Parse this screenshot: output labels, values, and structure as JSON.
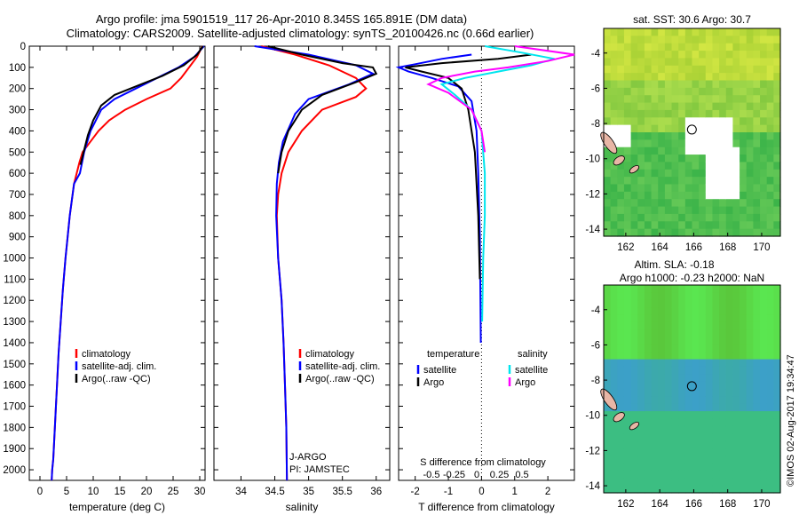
{
  "title_line1": "Argo profile: jma 5901519_117 26-Apr-2010 8.345S 165.891E (DM data)",
  "title_line2": "Climatology: CARS2009. Satellite-adjusted climatology: synTS_20100426.nc (0.66d earlier)",
  "footer_stamp": "©IMOS 02-Aug-2017 19:34:47",
  "colors": {
    "climatology": "#ff0000",
    "satellite": "#0000ff",
    "argo": "#000000",
    "salinity_satellite": "#00e5ee",
    "salinity_argo": "#ff00ff"
  },
  "chart_data": [
    {
      "type": "line",
      "xlabel": "temperature (deg C)",
      "ylabel": "",
      "xlim": [
        -2,
        31
      ],
      "ylim": [
        2050,
        0
      ],
      "xticks": [
        0,
        5,
        10,
        15,
        20,
        25,
        30
      ],
      "yticks": [
        0,
        100,
        200,
        300,
        400,
        500,
        600,
        700,
        800,
        900,
        1000,
        1100,
        1200,
        1300,
        1400,
        1500,
        1600,
        1700,
        1800,
        1900,
        2000
      ],
      "legend": [
        "climatology",
        "satellite-adj. clim.",
        "Argo(..raw -QC)"
      ],
      "series": [
        {
          "name": "climatology",
          "color": "#ff0000",
          "x": [
            30.5,
            29.5,
            28,
            26.5,
            24.5,
            20,
            16,
            13,
            11,
            9.5,
            8,
            7.4,
            6.4,
            5.6,
            4.8,
            4.3,
            3.9,
            3.5,
            3.2,
            2.9,
            2.7,
            2.5,
            2.3,
            2.2
          ],
          "y": [
            0,
            50,
            100,
            150,
            200,
            250,
            300,
            350,
            400,
            450,
            500,
            550,
            650,
            800,
            1000,
            1150,
            1300,
            1450,
            1600,
            1750,
            1850,
            1950,
            2000,
            2050
          ]
        },
        {
          "name": "satellite-adj. clim.",
          "color": "#0000ff",
          "x": [
            30.8,
            29,
            26,
            22,
            18,
            14,
            11.5,
            9.5,
            8.3,
            7.5,
            6.4,
            5.6,
            4.8,
            4.3,
            3.9,
            3.5,
            3.2,
            2.9,
            2.7,
            2.5,
            2.3,
            2.2
          ],
          "y": [
            0,
            50,
            100,
            150,
            200,
            250,
            300,
            400,
            500,
            600,
            650,
            800,
            1000,
            1150,
            1300,
            1450,
            1600,
            1750,
            1850,
            1950,
            2000,
            2050
          ]
        },
        {
          "name": "Argo(..raw -QC)",
          "color": "#000000",
          "x": [
            30.6,
            29.5,
            27,
            23,
            19,
            14,
            11.5,
            10,
            9,
            8.2,
            7.6
          ],
          "y": [
            0,
            40,
            90,
            140,
            180,
            230,
            280,
            350,
            420,
            500,
            560
          ]
        }
      ]
    },
    {
      "type": "line",
      "xlabel": "salinity",
      "ylabel": "",
      "xlim": [
        33.6,
        36.2
      ],
      "ylim": [
        2050,
        0
      ],
      "xticks": [
        34,
        34.5,
        35,
        35.5,
        36
      ],
      "legend": [
        "climatology",
        "satellite-adj. clim.",
        "Argo(..raw -QC)"
      ],
      "annotations": [
        "J-ARGO",
        "PI: JAMSTEC"
      ],
      "series": [
        {
          "name": "climatology",
          "color": "#ff0000",
          "x": [
            34.3,
            34.8,
            35.3,
            35.7,
            35.85,
            35.7,
            35.2,
            34.9,
            34.7,
            34.6,
            34.55,
            34.53,
            34.55,
            34.6,
            34.63,
            34.65,
            34.67,
            34.68
          ],
          "y": [
            0,
            40,
            90,
            150,
            200,
            240,
            300,
            400,
            500,
            600,
            700,
            800,
            1000,
            1200,
            1400,
            1600,
            1800,
            2050
          ]
        },
        {
          "name": "satellite-adj. clim.",
          "color": "#0000ff",
          "x": [
            34.2,
            35.0,
            35.7,
            35.95,
            35.6,
            35.0,
            34.8,
            34.62,
            34.56,
            34.53,
            34.52,
            34.55,
            34.6,
            34.63,
            34.65,
            34.67,
            34.68
          ],
          "y": [
            0,
            40,
            90,
            130,
            180,
            250,
            320,
            450,
            550,
            650,
            800,
            1000,
            1200,
            1400,
            1600,
            1800,
            2050
          ]
        },
        {
          "name": "Argo(..raw -QC)",
          "color": "#000000",
          "x": [
            34.4,
            34.9,
            35.5,
            35.95,
            36.0,
            35.7,
            35.2,
            34.9,
            34.7,
            34.6,
            34.55
          ],
          "y": [
            0,
            40,
            80,
            100,
            130,
            170,
            230,
            300,
            400,
            500,
            600
          ]
        }
      ]
    },
    {
      "type": "line",
      "xlabel": "T difference from climatology",
      "xlabel2": "S difference from climatology",
      "xlim": [
        -2.5,
        2.8
      ],
      "ylim": [
        2050,
        0
      ],
      "xticks": [
        -2,
        -1,
        0,
        1,
        2
      ],
      "xticks2": [
        -0.5,
        -0.25,
        0,
        0.25,
        0.5
      ],
      "legend": [
        "temperature",
        "salinity",
        "satellite",
        "Argo",
        "satellite",
        "Argo"
      ],
      "series": [
        {
          "name": "temperature satellite",
          "color": "#0000ff",
          "x": [
            -0.3,
            -1.2,
            -2.0,
            -2.5,
            -2.2,
            -1.5,
            -0.7,
            -0.3,
            -0.15,
            -0.1,
            -0.05,
            -0.02
          ],
          "y": [
            40,
            60,
            85,
            100,
            120,
            150,
            190,
            260,
            400,
            600,
            900,
            1400
          ]
        },
        {
          "name": "temperature Argo",
          "color": "#000000",
          "x": [
            1.5,
            0.5,
            -1.2,
            -2.3,
            -1.8,
            -1.0,
            -0.6,
            -0.4,
            -0.2,
            -0.1,
            -0.05
          ],
          "y": [
            40,
            60,
            80,
            100,
            120,
            150,
            200,
            300,
            500,
            800,
            1100
          ]
        },
        {
          "name": "salinity satellite",
          "color": "#00e5ee",
          "x": [
            0.1,
            1.2,
            2.2,
            1.5,
            0.5,
            -0.5,
            -1.2,
            -0.8,
            -0.3,
            0,
            0.1,
            0.1,
            0.05,
            0.02
          ],
          "y": [
            0,
            30,
            60,
            90,
            120,
            150,
            180,
            230,
            300,
            400,
            600,
            800,
            1000,
            1300
          ]
        },
        {
          "name": "salinity Argo",
          "color": "#ff00ff",
          "x": [
            1.0,
            2.8,
            2.0,
            0.8,
            -0.2,
            -1.2,
            -1.6,
            -1.0,
            -0.3,
            0,
            0.1
          ],
          "y": [
            0,
            40,
            70,
            100,
            120,
            150,
            180,
            220,
            300,
            400,
            500
          ]
        }
      ]
    },
    {
      "type": "heatmap",
      "title": "sat. SST: 30.6  Argo: 30.7",
      "xlim": [
        160.7,
        171.1
      ],
      "ylim": [
        -14.4,
        -2.6
      ],
      "xticks": [
        162,
        164,
        166,
        168,
        170
      ],
      "yticks": [
        -4,
        -6,
        -8,
        -10,
        -12,
        -14
      ],
      "marker": {
        "lon": 165.891,
        "lat": -8.345
      }
    },
    {
      "type": "heatmap",
      "title_line1": "Altim. SLA: -0.18",
      "title_line2": "Argo h1000: -0.23 h2000: NaN",
      "xlim": [
        160.7,
        171.1
      ],
      "ylim": [
        -14.4,
        -2.6
      ],
      "xticks": [
        162,
        164,
        166,
        168,
        170
      ],
      "yticks": [
        -4,
        -6,
        -8,
        -10,
        -12,
        -14
      ],
      "marker": {
        "lon": 165.891,
        "lat": -8.345
      }
    }
  ]
}
